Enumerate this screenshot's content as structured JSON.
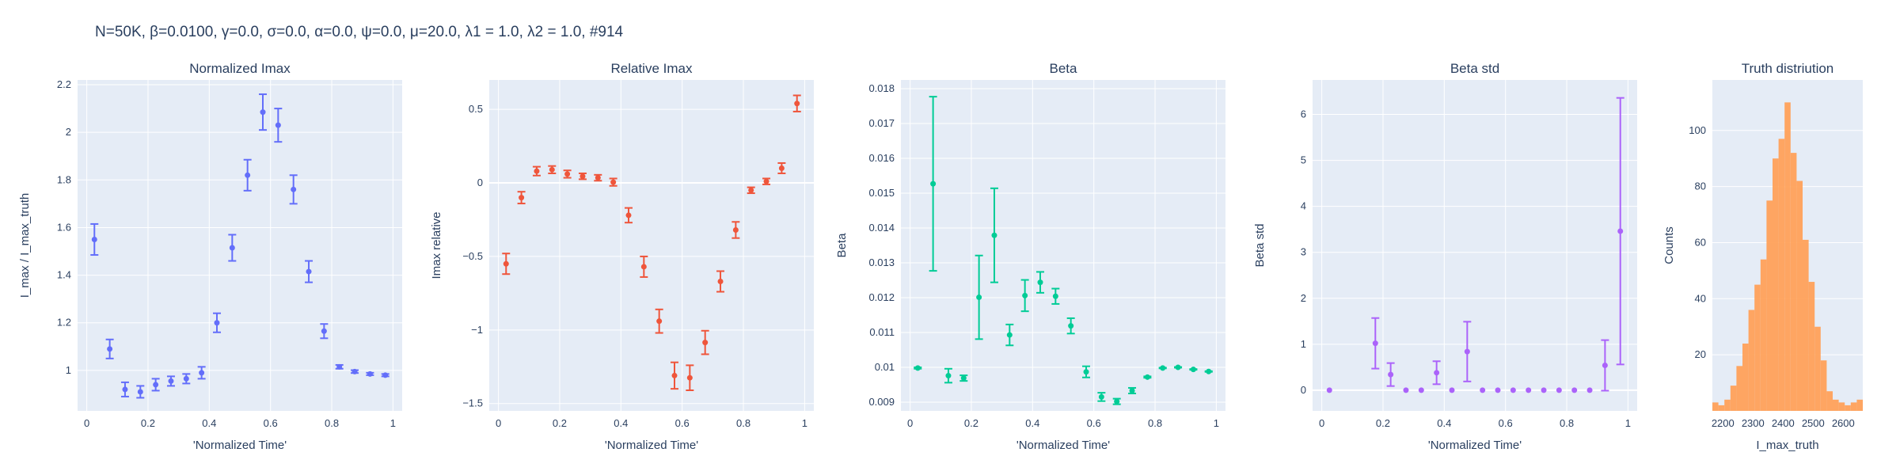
{
  "figure_title": "N=50K, β=0.0100, γ=0.0, σ=0.0,  α=0.0, ψ=0.0, μ=20.0, λ1 = 1.0, λ2 = 1.0, #914",
  "colors": {
    "plot_bg": "#e5ecf6",
    "grid": "#ffffff",
    "text": "#2a3f5f",
    "normalized_imax": "#636efa",
    "relative_imax": "#ef553b",
    "beta": "#00cc96",
    "beta_std": "#ab63fa",
    "truth": "#ffa15a"
  },
  "chart_data": [
    {
      "type": "scatter",
      "title": "Normalized Imax",
      "xlabel": "'Normalized Time'",
      "ylabel": "I_max / I_max_truth",
      "xlim": [
        -0.03,
        1.03
      ],
      "ylim": [
        0.83,
        2.22
      ],
      "xticks": [
        0,
        0.2,
        0.4,
        0.6,
        0.8,
        1
      ],
      "xtick_labels": [
        "0",
        "0.2",
        "0.4",
        "0.6",
        "0.8",
        "1"
      ],
      "yticks": [
        1,
        1.2,
        1.4,
        1.6,
        1.8,
        2,
        2.2
      ],
      "ytick_labels": [
        "1",
        "1.2",
        "1.4",
        "1.6",
        "1.8",
        "2",
        "2.2"
      ],
      "x": [
        0.025,
        0.075,
        0.125,
        0.175,
        0.225,
        0.275,
        0.325,
        0.375,
        0.425,
        0.475,
        0.525,
        0.575,
        0.625,
        0.675,
        0.725,
        0.775,
        0.825,
        0.875,
        0.925,
        0.975
      ],
      "y": [
        1.55,
        1.09,
        0.92,
        0.91,
        0.94,
        0.955,
        0.965,
        0.99,
        1.2,
        1.515,
        1.82,
        2.085,
        2.03,
        1.76,
        1.415,
        1.165,
        1.015,
        0.995,
        0.985,
        0.98
      ],
      "err": [
        0.065,
        0.04,
        0.03,
        0.025,
        0.025,
        0.02,
        0.02,
        0.025,
        0.04,
        0.055,
        0.065,
        0.075,
        0.07,
        0.06,
        0.045,
        0.03,
        0.008,
        0.006,
        0.005,
        0.005
      ]
    },
    {
      "type": "scatter",
      "title": "Relative Imax",
      "xlabel": "'Normalized Time'",
      "ylabel": "Imax relative",
      "xlim": [
        -0.03,
        1.03
      ],
      "ylim": [
        -1.55,
        0.7
      ],
      "xticks": [
        0,
        0.2,
        0.4,
        0.6,
        0.8,
        1
      ],
      "xtick_labels": [
        "0",
        "0.2",
        "0.4",
        "0.6",
        "0.8",
        "1"
      ],
      "yticks": [
        -1.5,
        -1,
        -0.5,
        0,
        0.5
      ],
      "ytick_labels": [
        "−1.5",
        "−1",
        "−0.5",
        "0",
        "0.5"
      ],
      "x": [
        0.025,
        0.075,
        0.125,
        0.175,
        0.225,
        0.275,
        0.325,
        0.375,
        0.425,
        0.475,
        0.525,
        0.575,
        0.625,
        0.675,
        0.725,
        0.775,
        0.825,
        0.875,
        0.925,
        0.975
      ],
      "y": [
        -0.55,
        -0.1,
        0.08,
        0.09,
        0.06,
        0.045,
        0.035,
        0.005,
        -0.22,
        -0.57,
        -0.94,
        -1.31,
        -1.325,
        -1.085,
        -0.67,
        -0.32,
        -0.05,
        0.01,
        0.1,
        0.54
      ],
      "err": [
        0.07,
        0.04,
        0.03,
        0.025,
        0.025,
        0.02,
        0.02,
        0.025,
        0.05,
        0.07,
        0.08,
        0.09,
        0.085,
        0.08,
        0.07,
        0.055,
        0.02,
        0.02,
        0.035,
        0.055
      ]
    },
    {
      "type": "scatter",
      "title": "Beta",
      "xlabel": "'Normalized Time'",
      "ylabel": "Beta",
      "xlim": [
        -0.03,
        1.03
      ],
      "ylim": [
        0.00875,
        0.01825
      ],
      "xticks": [
        0,
        0.2,
        0.4,
        0.6,
        0.8,
        1
      ],
      "xtick_labels": [
        "0",
        "0.2",
        "0.4",
        "0.6",
        "0.8",
        "1"
      ],
      "yticks": [
        0.009,
        0.01,
        0.011,
        0.012,
        0.013,
        0.014,
        0.015,
        0.016,
        0.017,
        0.018
      ],
      "ytick_labels": [
        "0.009",
        "0.01",
        "0.011",
        "0.012",
        "0.013",
        "0.014",
        "0.015",
        "0.016",
        "0.017",
        "0.018"
      ],
      "x": [
        0.025,
        0.075,
        0.125,
        0.175,
        0.225,
        0.275,
        0.325,
        0.375,
        0.425,
        0.475,
        0.525,
        0.575,
        0.625,
        0.675,
        0.725,
        0.775,
        0.825,
        0.875,
        0.925,
        0.975
      ],
      "y": [
        0.00998,
        0.01527,
        0.00976,
        0.00969,
        0.01201,
        0.01379,
        0.01093,
        0.01206,
        0.01244,
        0.01204,
        0.01119,
        0.00987,
        0.00915,
        0.00902,
        0.00933,
        0.00972,
        0.00998,
        0.01,
        0.00994,
        0.00988
      ],
      "err": [
        2e-05,
        0.0025,
        0.0002,
        8e-05,
        0.0012,
        0.00135,
        0.0003,
        0.00045,
        0.0003,
        0.00022,
        0.00022,
        0.00016,
        0.00012,
        8e-05,
        8e-05,
        2e-05,
        1e-05,
        1e-05,
        1e-05,
        1e-05
      ]
    },
    {
      "type": "scatter",
      "title": "Beta std",
      "xlabel": "'Normalized Time'",
      "ylabel": "Beta std",
      "xlim": [
        -0.03,
        1.03
      ],
      "ylim": [
        -0.45,
        6.75
      ],
      "xticks": [
        0,
        0.2,
        0.4,
        0.6,
        0.8,
        1
      ],
      "xtick_labels": [
        "0",
        "0.2",
        "0.4",
        "0.6",
        "0.8",
        "1"
      ],
      "yticks": [
        0,
        1,
        2,
        3,
        4,
        5,
        6
      ],
      "ytick_labels": [
        "0",
        "1",
        "2",
        "3",
        "4",
        "5",
        "6"
      ],
      "x": [
        0.025,
        0.175,
        0.225,
        0.275,
        0.325,
        0.375,
        0.425,
        0.475,
        0.525,
        0.575,
        0.625,
        0.675,
        0.725,
        0.775,
        0.825,
        0.875,
        0.925,
        0.975
      ],
      "y": [
        0.0,
        1.02,
        0.34,
        0.0,
        0.0,
        0.38,
        0.0,
        0.84,
        0.0,
        0.0,
        0.0,
        0.0,
        0.0,
        0.0,
        0.0,
        0.0,
        0.54,
        3.46
      ],
      "err": [
        0.0,
        0.55,
        0.25,
        0.0,
        0.0,
        0.25,
        0.0,
        0.65,
        0.0,
        0.0,
        0.0,
        0.0,
        0.0,
        0.0,
        0.0,
        0.0,
        0.55,
        2.9
      ]
    },
    {
      "type": "histogram",
      "title": "Truth distriution",
      "xlabel": "I_max_truth",
      "ylabel": "Counts",
      "xlim": [
        2165,
        2665
      ],
      "ylim": [
        0,
        118
      ],
      "xticks": [
        2200,
        2300,
        2400,
        2500,
        2600
      ],
      "xtick_labels": [
        "2200",
        "2300",
        "2400",
        "2500",
        "2600"
      ],
      "yticks": [
        20,
        40,
        60,
        80,
        100
      ],
      "ytick_labels": [
        "20",
        "40",
        "60",
        "80",
        "100"
      ],
      "bin_start": 2165,
      "bin_width": 20,
      "counts": [
        3,
        2,
        4,
        9,
        16,
        24,
        36,
        45,
        54,
        75,
        90,
        97,
        110,
        92,
        82,
        61,
        46,
        30,
        18,
        7,
        4,
        3,
        2,
        3,
        4
      ]
    }
  ]
}
